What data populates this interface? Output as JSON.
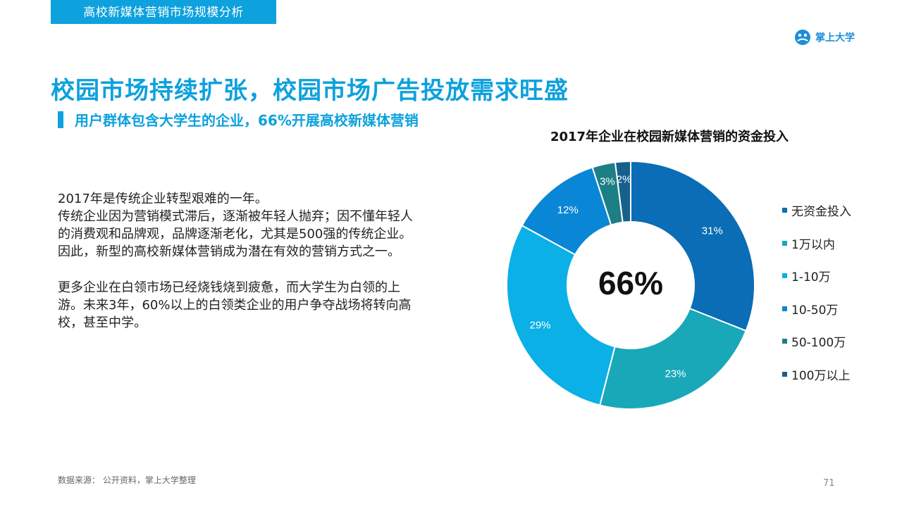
{
  "header": {
    "section_title": "高校新媒体营销市场规模分析",
    "brand_name": "掌上大学"
  },
  "main": {
    "title": "校园市场持续扩张，校园市场广告投放需求旺盛",
    "subtitle": "用户群体包含大学生的企业，66%开展高校新媒体营销",
    "paragraphs": [
      [
        "2017年是传统企业转型艰难的一年。",
        "传统企业因为营销模式滞后，逐渐被年轻人抛弃；因不懂年轻人",
        "的消费观和品牌观，品牌逐渐老化，尤其是500强的传统企业。",
        "因此，新型的高校新媒体营销成为潜在有效的营销方式之一。"
      ],
      [
        "更多企业在白领市场已经烧钱烧到疲惫，而大学生为白领的上",
        "游。未来3年，60%以上的白领类企业的用户争夺战场将转向高",
        "校，甚至中学。"
      ]
    ]
  },
  "chart_data": {
    "type": "pie",
    "variant": "donut",
    "title": "2017年企业在校园新媒体营销的资金投入",
    "center_label": "66%",
    "categories": [
      "无资金投入",
      "1万以内",
      "1-10万",
      "10-50万",
      "50-100万",
      "100万以上"
    ],
    "values": [
      31,
      23,
      29,
      12,
      3,
      2
    ],
    "data_labels": [
      "31%",
      "23%",
      "29%",
      "12%",
      "3%",
      "2%"
    ],
    "colors": [
      "#0a6db5",
      "#18a8b8",
      "#0ab0e6",
      "#0a86d6",
      "#1d7f86",
      "#17608e"
    ],
    "legend_position": "right"
  },
  "footer": {
    "source": "数据来源： 公开资料，掌上大学整理",
    "page_number": "71"
  }
}
